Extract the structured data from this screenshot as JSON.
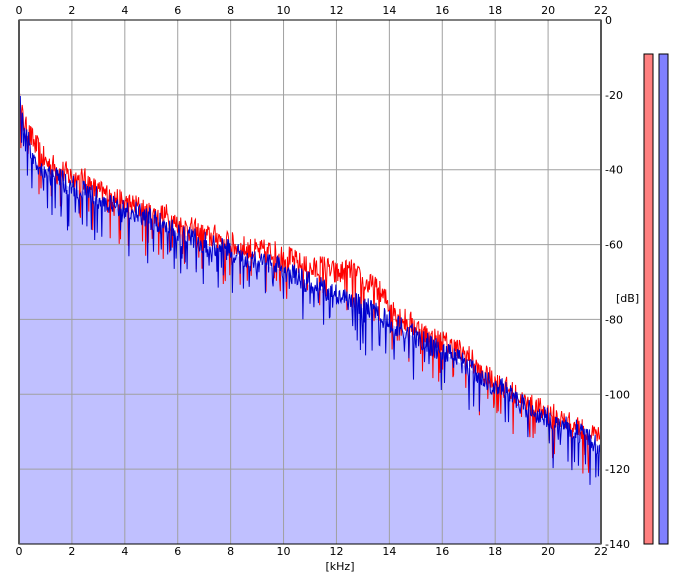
{
  "chart_data": {
    "type": "area",
    "xlabel": "[kHz]",
    "ylabel": "[dB]",
    "xlim": [
      0,
      22
    ],
    "ylim": [
      -140,
      0
    ],
    "x_ticks": [
      "0",
      "2",
      "4",
      "6",
      "8",
      "10",
      "12",
      "14",
      "16",
      "18",
      "20",
      "22"
    ],
    "y_ticks": [
      "0",
      "-20",
      "-40",
      "-60",
      "-80",
      "-100",
      "-120",
      "-140"
    ],
    "grid": true,
    "series": [
      {
        "color": "#ff0000",
        "x": [
          0,
          0.1,
          0.25,
          0.5,
          0.75,
          1,
          1.5,
          2,
          2.5,
          3,
          3.5,
          4,
          4.5,
          5,
          5.5,
          6,
          6.5,
          7,
          7.5,
          8,
          8.5,
          9,
          9.5,
          10,
          10.5,
          11,
          11.5,
          12,
          12.5,
          13,
          13.5,
          14,
          14.5,
          15,
          15.5,
          16,
          16.5,
          17,
          17.5,
          18,
          18.5,
          19,
          19.5,
          20,
          20.5,
          21,
          21.5,
          22
        ],
        "values": [
          -22,
          -25,
          -29,
          -32,
          -35,
          -38,
          -40,
          -42,
          -43,
          -46,
          -47,
          -49,
          -50,
          -52,
          -52,
          -55,
          -56,
          -58,
          -58,
          -60,
          -61,
          -62,
          -62,
          -63,
          -65,
          -67,
          -66,
          -68,
          -67,
          -70,
          -72,
          -76,
          -80,
          -82,
          -85,
          -86,
          -88,
          -90,
          -95,
          -97,
          -99,
          -102,
          -104,
          -105,
          -107,
          -108,
          -111,
          -112
        ]
      },
      {
        "color": "#0000cc",
        "x": [
          0,
          0.1,
          0.25,
          0.5,
          0.75,
          1,
          1.5,
          2,
          2.5,
          3,
          3.5,
          4,
          4.5,
          5,
          5.5,
          6,
          6.5,
          7,
          7.5,
          8,
          8.5,
          9,
          9.5,
          10,
          10.5,
          11,
          11.5,
          12,
          12.5,
          13,
          13.5,
          14,
          14.5,
          15,
          15.5,
          16,
          16.5,
          17,
          17.5,
          18,
          18.5,
          19,
          19.5,
          20,
          20.5,
          21,
          21.5,
          22
        ],
        "values": [
          -18,
          -27,
          -31,
          -36,
          -39,
          -41,
          -43,
          -45,
          -46,
          -48,
          -50,
          -51,
          -52,
          -54,
          -55,
          -57,
          -58,
          -60,
          -61,
          -62,
          -64,
          -65,
          -66,
          -67,
          -69,
          -71,
          -72,
          -74,
          -75,
          -77,
          -79,
          -81,
          -83,
          -85,
          -87,
          -89,
          -91,
          -93,
          -96,
          -98,
          -100,
          -103,
          -105,
          -107,
          -109,
          -110,
          -112,
          -114
        ]
      }
    ],
    "level_meters": [
      {
        "color": "#ff8080",
        "level": 0.98
      },
      {
        "color": "#8080ff",
        "level": 0.98
      }
    ],
    "colors": {
      "fill": "#c0c0ff",
      "grid": "#a0a0a0",
      "frame": "#000000"
    }
  }
}
